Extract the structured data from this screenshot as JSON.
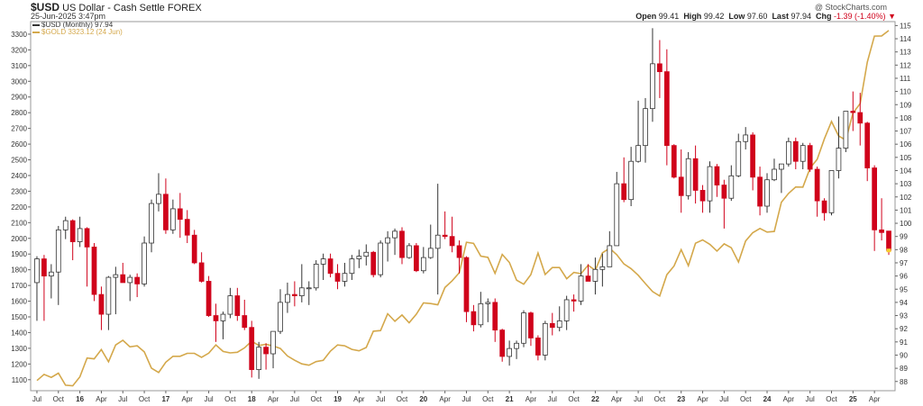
{
  "header": {
    "symbol": "$USD",
    "name": "US Dollar - Cash Settle",
    "exchange": "FOREX",
    "timestamp": "25-Jun-2025 3:47pm",
    "watermark": "@ StockCharts.com",
    "legend1": "$USD (Monthly) 97.94",
    "legend2": "$GOLD 3323.12 (24 Jun)",
    "open_label": "Open",
    "open": "99.41",
    "high_label": "High",
    "high": "99.42",
    "low_label": "Low",
    "low": "97.60",
    "last_label": "Last",
    "last": "97.94",
    "chg_label": "Chg",
    "chg": "-1.39 (-1.40%)"
  },
  "colors": {
    "up_fill": "#ffffff",
    "candle_outline": "#333333",
    "down_fill": "#d0021b",
    "gold_line": "#d4a84b",
    "last_marker": "#f7d02e"
  },
  "chart_data": {
    "type": "line",
    "title": "",
    "x_tick_labels": [
      "Jul",
      "Oct",
      "16",
      "Apr",
      "Jul",
      "Oct",
      "17",
      "Apr",
      "Jul",
      "Oct",
      "18",
      "Apr",
      "Jul",
      "Oct",
      "19",
      "Apr",
      "Jul",
      "Oct",
      "20",
      "Apr",
      "Jul",
      "Oct",
      "21",
      "Apr",
      "Jul",
      "Oct",
      "22",
      "Apr",
      "Jul",
      "Oct",
      "23",
      "Apr",
      "Jul",
      "Oct",
      "24",
      "Apr",
      "Jul",
      "Oct",
      "25",
      "Apr"
    ],
    "x_tick_bold": [
      "16",
      "17",
      "18",
      "19",
      "20",
      "21",
      "22",
      "23",
      "24",
      "25"
    ],
    "left_axis": {
      "label": "$GOLD",
      "ylim": [
        1030,
        3380
      ],
      "ticks": [
        1100,
        1200,
        1300,
        1400,
        1500,
        1600,
        1700,
        1800,
        1900,
        2000,
        2100,
        2200,
        2300,
        2400,
        2500,
        2600,
        2700,
        2800,
        2900,
        3000,
        3100,
        3200,
        3300
      ]
    },
    "right_axis": {
      "label": "$USD",
      "ylim": [
        87.3,
        115.3
      ],
      "ticks": [
        88,
        89,
        90,
        91,
        92,
        93,
        94,
        95,
        96,
        97,
        98,
        99,
        100,
        101,
        102,
        103,
        104,
        105,
        106,
        107,
        108,
        109,
        110,
        111,
        112,
        113,
        114,
        115
      ]
    },
    "months": [
      "2015-07",
      "2015-08",
      "2015-09",
      "2015-10",
      "2015-11",
      "2015-12",
      "2016-01",
      "2016-02",
      "2016-03",
      "2016-04",
      "2016-05",
      "2016-06",
      "2016-07",
      "2016-08",
      "2016-09",
      "2016-10",
      "2016-11",
      "2016-12",
      "2017-01",
      "2017-02",
      "2017-03",
      "2017-04",
      "2017-05",
      "2017-06",
      "2017-07",
      "2017-08",
      "2017-09",
      "2017-10",
      "2017-11",
      "2017-12",
      "2018-01",
      "2018-02",
      "2018-03",
      "2018-04",
      "2018-05",
      "2018-06",
      "2018-07",
      "2018-08",
      "2018-09",
      "2018-10",
      "2018-11",
      "2018-12",
      "2019-01",
      "2019-02",
      "2019-03",
      "2019-04",
      "2019-05",
      "2019-06",
      "2019-07",
      "2019-08",
      "2019-09",
      "2019-10",
      "2019-11",
      "2019-12",
      "2020-01",
      "2020-02",
      "2020-03",
      "2020-04",
      "2020-05",
      "2020-06",
      "2020-07",
      "2020-08",
      "2020-09",
      "2020-10",
      "2020-11",
      "2020-12",
      "2021-01",
      "2021-02",
      "2021-03",
      "2021-04",
      "2021-05",
      "2021-06",
      "2021-07",
      "2021-08",
      "2021-09",
      "2021-10",
      "2021-11",
      "2021-12",
      "2022-01",
      "2022-02",
      "2022-03",
      "2022-04",
      "2022-05",
      "2022-06",
      "2022-07",
      "2022-08",
      "2022-09",
      "2022-10",
      "2022-11",
      "2022-12",
      "2023-01",
      "2023-02",
      "2023-03",
      "2023-04",
      "2023-05",
      "2023-06",
      "2023-07",
      "2023-08",
      "2023-09",
      "2023-10",
      "2023-11",
      "2023-12",
      "2024-01",
      "2024-02",
      "2024-03",
      "2024-04",
      "2024-05",
      "2024-06",
      "2024-07",
      "2024-08",
      "2024-09",
      "2024-10",
      "2024-11",
      "2024-12",
      "2025-01",
      "2025-02",
      "2025-03",
      "2025-04",
      "2025-05",
      "2025-06"
    ],
    "series": [
      {
        "name": "$USD (Monthly)",
        "kind": "candlestick",
        "axis": "right",
        "ohlc": [
          [
            95.5,
            97.5,
            92.6,
            97.3
          ],
          [
            97.3,
            97.6,
            92.6,
            96.0
          ],
          [
            96.0,
            96.9,
            94.3,
            96.3
          ],
          [
            96.3,
            99.8,
            93.8,
            99.5
          ],
          [
            99.5,
            100.5,
            98.8,
            100.2
          ],
          [
            100.2,
            100.3,
            97.2,
            98.6
          ],
          [
            98.6,
            100.5,
            98.2,
            99.6
          ],
          [
            99.6,
            99.7,
            95.2,
            98.2
          ],
          [
            98.2,
            98.5,
            94.1,
            94.6
          ],
          [
            94.6,
            95.2,
            91.9,
            93.1
          ],
          [
            93.1,
            96.0,
            91.9,
            95.9
          ],
          [
            95.9,
            96.7,
            93.1,
            96.1
          ],
          [
            96.1,
            97.0,
            95.5,
            95.5
          ],
          [
            95.5,
            96.1,
            94.1,
            95.9
          ],
          [
            95.9,
            96.2,
            94.4,
            95.4
          ],
          [
            95.4,
            99.0,
            95.2,
            98.5
          ],
          [
            98.5,
            101.8,
            97.8,
            101.5
          ],
          [
            101.5,
            103.8,
            100.9,
            102.2
          ],
          [
            102.2,
            103.4,
            99.2,
            99.5
          ],
          [
            99.5,
            101.8,
            99.2,
            101.1
          ],
          [
            101.1,
            102.3,
            98.9,
            100.3
          ],
          [
            100.3,
            101.0,
            98.5,
            99.1
          ],
          [
            99.1,
            99.5,
            96.9,
            97.0
          ],
          [
            97.0,
            97.8,
            95.5,
            95.6
          ],
          [
            95.6,
            96.0,
            92.9,
            93.0
          ],
          [
            93.0,
            93.9,
            91.0,
            92.6
          ],
          [
            92.6,
            93.3,
            91.2,
            93.1
          ],
          [
            93.1,
            95.1,
            92.8,
            94.5
          ],
          [
            94.5,
            95.1,
            92.6,
            93.0
          ],
          [
            93.0,
            94.2,
            91.9,
            92.1
          ],
          [
            92.1,
            92.6,
            88.3,
            88.9
          ],
          [
            88.9,
            91.0,
            88.2,
            90.6
          ],
          [
            90.6,
            90.9,
            88.9,
            90.1
          ],
          [
            90.1,
            91.8,
            89.0,
            91.8
          ],
          [
            91.8,
            95.0,
            91.6,
            94.0
          ],
          [
            94.0,
            95.5,
            93.2,
            94.6
          ],
          [
            94.6,
            95.6,
            93.7,
            94.5
          ],
          [
            94.5,
            96.9,
            94.0,
            95.1
          ],
          [
            95.1,
            95.6,
            93.8,
            95.1
          ],
          [
            95.1,
            97.2,
            94.9,
            96.9
          ],
          [
            96.9,
            97.7,
            95.7,
            97.3
          ],
          [
            97.3,
            97.7,
            95.9,
            96.2
          ],
          [
            96.2,
            96.9,
            95.0,
            95.6
          ],
          [
            95.6,
            97.0,
            95.2,
            96.2
          ],
          [
            96.2,
            97.6,
            95.7,
            97.3
          ],
          [
            97.3,
            98.0,
            96.6,
            97.5
          ],
          [
            97.5,
            98.4,
            96.8,
            97.8
          ],
          [
            97.8,
            97.9,
            95.9,
            96.1
          ],
          [
            96.1,
            98.7,
            95.9,
            98.5
          ],
          [
            98.5,
            99.4,
            97.1,
            98.9
          ],
          [
            98.9,
            99.6,
            97.6,
            99.4
          ],
          [
            99.4,
            99.7,
            96.9,
            97.4
          ],
          [
            97.4,
            98.5,
            97.3,
            98.3
          ],
          [
            98.3,
            98.5,
            96.3,
            96.4
          ],
          [
            96.4,
            98.2,
            96.2,
            97.4
          ],
          [
            97.4,
            99.9,
            97.3,
            98.1
          ],
          [
            98.1,
            103.0,
            94.6,
            99.1
          ],
          [
            99.1,
            100.9,
            98.8,
            99.0
          ],
          [
            99.0,
            100.5,
            97.8,
            98.3
          ],
          [
            98.3,
            98.7,
            96.2,
            97.4
          ],
          [
            97.4,
            97.5,
            92.5,
            93.3
          ],
          [
            93.3,
            93.8,
            91.8,
            92.3
          ],
          [
            92.3,
            94.8,
            92.1,
            93.9
          ],
          [
            93.9,
            94.3,
            92.5,
            94.0
          ],
          [
            94.0,
            94.3,
            91.0,
            91.9
          ],
          [
            91.9,
            92.0,
            89.5,
            89.9
          ],
          [
            89.9,
            91.1,
            89.2,
            90.5
          ],
          [
            90.5,
            91.1,
            89.7,
            90.9
          ],
          [
            90.9,
            93.4,
            90.6,
            93.2
          ],
          [
            93.2,
            93.3,
            90.7,
            91.3
          ],
          [
            91.3,
            91.5,
            89.6,
            90.0
          ],
          [
            90.0,
            92.6,
            89.6,
            92.4
          ],
          [
            92.4,
            93.2,
            91.5,
            92.1
          ],
          [
            92.1,
            93.7,
            91.8,
            92.6
          ],
          [
            92.6,
            94.5,
            91.9,
            94.2
          ],
          [
            94.2,
            94.6,
            93.3,
            94.1
          ],
          [
            94.1,
            96.9,
            93.8,
            96.0
          ],
          [
            96.0,
            96.9,
            95.6,
            95.6
          ],
          [
            95.6,
            97.4,
            94.6,
            96.5
          ],
          [
            96.5,
            97.7,
            95.2,
            96.7
          ],
          [
            96.7,
            99.4,
            97.3,
            98.3
          ],
          [
            98.3,
            103.9,
            98.3,
            103.0
          ],
          [
            103.0,
            105.0,
            101.6,
            101.8
          ],
          [
            101.8,
            105.8,
            101.3,
            104.7
          ],
          [
            104.7,
            109.3,
            104.6,
            105.9
          ],
          [
            105.9,
            109.5,
            104.6,
            108.7
          ],
          [
            108.7,
            114.8,
            107.7,
            112.1
          ],
          [
            112.1,
            113.9,
            109.5,
            111.5
          ],
          [
            111.5,
            113.2,
            104.4,
            105.9
          ],
          [
            105.9,
            106.0,
            103.4,
            103.5
          ],
          [
            103.5,
            105.6,
            100.8,
            102.1
          ],
          [
            102.1,
            105.4,
            101.8,
            104.9
          ],
          [
            104.9,
            105.9,
            101.5,
            102.5
          ],
          [
            102.5,
            102.9,
            100.8,
            101.7
          ],
          [
            101.7,
            104.7,
            100.8,
            104.3
          ],
          [
            104.3,
            104.5,
            102.0,
            102.9
          ],
          [
            102.9,
            103.3,
            99.6,
            101.9
          ],
          [
            101.9,
            104.4,
            101.7,
            103.6
          ],
          [
            103.6,
            106.8,
            103.5,
            106.2
          ],
          [
            106.2,
            107.3,
            105.6,
            106.7
          ],
          [
            106.7,
            106.9,
            102.5,
            103.5
          ],
          [
            103.5,
            104.3,
            100.6,
            101.3
          ],
          [
            101.3,
            103.8,
            100.8,
            103.3
          ],
          [
            103.3,
            104.9,
            103.2,
            104.1
          ],
          [
            104.1,
            104.4,
            102.3,
            104.5
          ],
          [
            104.5,
            106.5,
            104.3,
            106.2
          ],
          [
            106.2,
            106.5,
            104.1,
            104.7
          ],
          [
            104.7,
            106.1,
            104.1,
            105.9
          ],
          [
            105.9,
            106.1,
            103.9,
            104.1
          ],
          [
            104.1,
            104.3,
            100.5,
            101.7
          ],
          [
            101.7,
            101.9,
            100.2,
            100.8
          ],
          [
            100.8,
            104.0,
            100.6,
            104.0
          ],
          [
            104.0,
            108.1,
            103.4,
            105.7
          ],
          [
            105.7,
            108.5,
            105.4,
            108.5
          ],
          [
            108.5,
            110.0,
            107.0,
            108.4
          ],
          [
            108.4,
            109.9,
            105.9,
            107.6
          ],
          [
            107.6,
            107.7,
            103.2,
            104.2
          ],
          [
            104.2,
            104.4,
            97.9,
            99.5
          ],
          [
            99.5,
            101.9,
            98.7,
            99.3
          ],
          [
            99.41,
            99.42,
            97.6,
            97.94
          ]
        ]
      },
      {
        "name": "$GOLD",
        "kind": "line",
        "axis": "left",
        "values": [
          1095,
          1134,
          1115,
          1142,
          1065,
          1061,
          1118,
          1238,
          1233,
          1292,
          1214,
          1321,
          1351,
          1309,
          1316,
          1277,
          1174,
          1146,
          1211,
          1249,
          1249,
          1268,
          1268,
          1242,
          1269,
          1322,
          1280,
          1271,
          1275,
          1303,
          1345,
          1318,
          1325,
          1315,
          1299,
          1251,
          1224,
          1201,
          1192,
          1215,
          1223,
          1282,
          1321,
          1316,
          1293,
          1284,
          1305,
          1409,
          1413,
          1520,
          1472,
          1512,
          1463,
          1517,
          1589,
          1585,
          1577,
          1687,
          1730,
          1781,
          1975,
          1968,
          1887,
          1879,
          1777,
          1898,
          1847,
          1734,
          1708,
          1769,
          1907,
          1770,
          1814,
          1814,
          1743,
          1783,
          1775,
          1829,
          1796,
          1908,
          1937,
          1896,
          1837,
          1807,
          1765,
          1712,
          1661,
          1633,
          1768,
          1824,
          1928,
          1826,
          1969,
          1990,
          1962,
          1919,
          1965,
          1940,
          1849,
          1983,
          2036,
          2063,
          2040,
          2044,
          2230,
          2286,
          2327,
          2326,
          2447,
          2503,
          2634,
          2744,
          2652,
          2625,
          2798,
          2858,
          3122,
          3288,
          3289,
          3323.12
        ]
      }
    ]
  }
}
